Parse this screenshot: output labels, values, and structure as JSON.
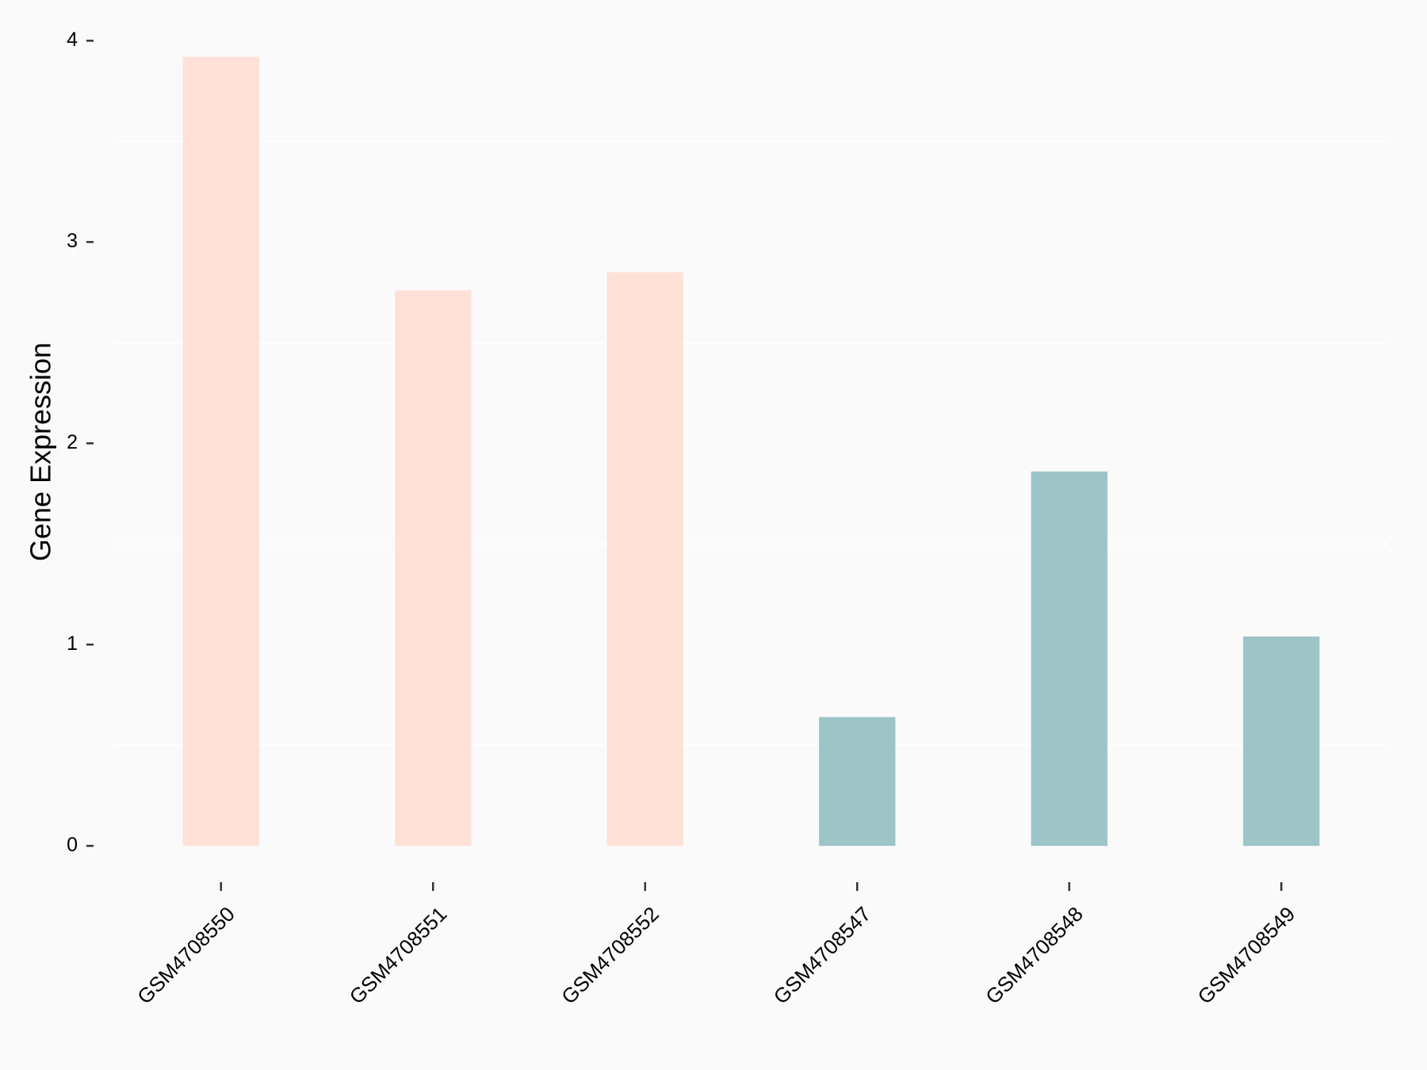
{
  "chart_data": {
    "type": "bar",
    "y_label": "Gene Expression",
    "categories": [
      "GSM4708550",
      "GSM4708551",
      "GSM4708552",
      "GSM4708547",
      "GSM4708548",
      "GSM4708549"
    ],
    "values": [
      3.92,
      2.76,
      2.85,
      0.64,
      1.86,
      1.04
    ],
    "colors": [
      "#ffe1d7",
      "#ffe1d7",
      "#ffe1d7",
      "#9dc4c7",
      "#9dc4c7",
      "#9dc4c7"
    ],
    "ylim": [
      -0.2,
      4.1
    ],
    "yticks": [
      0,
      1,
      2,
      3,
      4
    ],
    "minor_yticks": [
      0.5,
      1.5,
      2.5,
      3.5
    ],
    "grid": "minor"
  }
}
